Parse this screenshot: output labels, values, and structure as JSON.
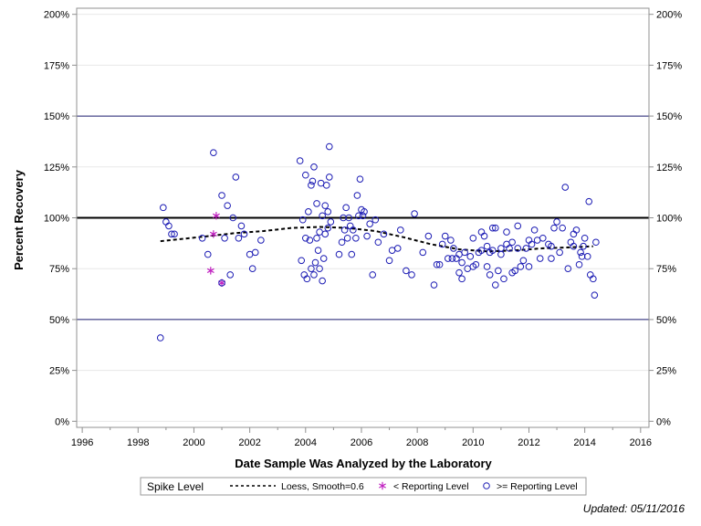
{
  "colors": {
    "frame": "#909090",
    "grid": "#e8e8e8",
    "refline": "#1a1a6e",
    "hundred": "#000000",
    "marker_ge": "#1c1cb4",
    "marker_lt": "#c020c0",
    "loess": "#000000"
  },
  "chart_data": {
    "type": "scatter",
    "title": "",
    "xlabel": "Date Sample Was Analyzed by the Laboratory",
    "ylabel": "Percent Recovery",
    "xlim": [
      1995.8,
      2016.3
    ],
    "ylim": [
      -3,
      203
    ],
    "x_ticks": [
      1996,
      1998,
      2000,
      2002,
      2004,
      2006,
      2008,
      2010,
      2012,
      2014,
      2016
    ],
    "y_ticks": [
      0,
      25,
      50,
      75,
      100,
      125,
      150,
      175,
      200
    ],
    "y_tick_labels": [
      "0%",
      "25%",
      "50%",
      "75%",
      "100%",
      "125%",
      "150%",
      "175%",
      "200%"
    ],
    "reference_lines": [
      50,
      100,
      150
    ],
    "grid": true,
    "legend": {
      "title": "Spike Level",
      "placement": "bottom",
      "entries": [
        "Loess, Smooth=0.6",
        "< Reporting Level",
        ">= Reporting Level"
      ]
    },
    "series": [
      {
        "name": "Loess, Smooth=0.6",
        "style": "line",
        "points": [
          [
            1998.8,
            88.5
          ],
          [
            1999.5,
            89.5
          ],
          [
            2000.5,
            91
          ],
          [
            2001.5,
            92.5
          ],
          [
            2002.5,
            93.5
          ],
          [
            2003.5,
            95
          ],
          [
            2004.5,
            95.5
          ],
          [
            2005.5,
            95
          ],
          [
            2006.5,
            93.5
          ],
          [
            2007.5,
            90.5
          ],
          [
            2008.5,
            87
          ],
          [
            2009.5,
            84.5
          ],
          [
            2010.5,
            83.5
          ],
          [
            2011.5,
            84
          ],
          [
            2012.5,
            85
          ],
          [
            2013.5,
            85.5
          ],
          [
            2014.3,
            86
          ]
        ]
      },
      {
        "name": "< Reporting Level",
        "style": "asterisk",
        "points": [
          [
            2000.6,
            74
          ],
          [
            2000.7,
            92
          ],
          [
            2000.8,
            101
          ],
          [
            2001.0,
            68
          ]
        ]
      },
      {
        "name": ">= Reporting Level",
        "style": "circle",
        "points": [
          [
            1998.8,
            41
          ],
          [
            1998.9,
            105
          ],
          [
            1999.0,
            98
          ],
          [
            1999.1,
            96
          ],
          [
            1999.2,
            92
          ],
          [
            1999.3,
            92
          ],
          [
            2000.3,
            90
          ],
          [
            2000.5,
            82
          ],
          [
            2000.7,
            132
          ],
          [
            2001.0,
            111
          ],
          [
            2001.0,
            68
          ],
          [
            2001.1,
            90
          ],
          [
            2001.2,
            106
          ],
          [
            2001.3,
            72
          ],
          [
            2001.4,
            100
          ],
          [
            2001.5,
            120
          ],
          [
            2001.6,
            90
          ],
          [
            2001.7,
            96
          ],
          [
            2001.8,
            92
          ],
          [
            2002.0,
            82
          ],
          [
            2002.1,
            75
          ],
          [
            2002.2,
            83
          ],
          [
            2002.4,
            89
          ],
          [
            2003.8,
            128
          ],
          [
            2003.85,
            79
          ],
          [
            2003.9,
            99
          ],
          [
            2003.95,
            72
          ],
          [
            2004.0,
            121
          ],
          [
            2004.0,
            90
          ],
          [
            2004.05,
            70
          ],
          [
            2004.1,
            103
          ],
          [
            2004.15,
            89
          ],
          [
            2004.2,
            116
          ],
          [
            2004.2,
            75
          ],
          [
            2004.25,
            118
          ],
          [
            2004.3,
            125
          ],
          [
            2004.3,
            72
          ],
          [
            2004.35,
            78
          ],
          [
            2004.4,
            107
          ],
          [
            2004.4,
            90
          ],
          [
            2004.45,
            84
          ],
          [
            2004.5,
            75
          ],
          [
            2004.5,
            93
          ],
          [
            2004.55,
            117
          ],
          [
            2004.6,
            101
          ],
          [
            2004.6,
            69
          ],
          [
            2004.65,
            80
          ],
          [
            2004.7,
            106
          ],
          [
            2004.7,
            92
          ],
          [
            2004.75,
            116
          ],
          [
            2004.8,
            103
          ],
          [
            2004.8,
            95
          ],
          [
            2004.85,
            120
          ],
          [
            2004.85,
            135
          ],
          [
            2004.9,
            98
          ],
          [
            2005.2,
            82
          ],
          [
            2005.3,
            88
          ],
          [
            2005.35,
            100
          ],
          [
            2005.4,
            94
          ],
          [
            2005.45,
            105
          ],
          [
            2005.5,
            90
          ],
          [
            2005.55,
            100
          ],
          [
            2005.6,
            96
          ],
          [
            2005.65,
            82
          ],
          [
            2005.7,
            94
          ],
          [
            2005.8,
            90
          ],
          [
            2005.85,
            111
          ],
          [
            2005.9,
            101
          ],
          [
            2005.95,
            119
          ],
          [
            2006.0,
            104
          ],
          [
            2006.05,
            101
          ],
          [
            2006.1,
            103
          ],
          [
            2006.2,
            91
          ],
          [
            2006.3,
            97
          ],
          [
            2006.4,
            72
          ],
          [
            2006.5,
            99
          ],
          [
            2006.6,
            88
          ],
          [
            2006.8,
            92
          ],
          [
            2007.0,
            79
          ],
          [
            2007.1,
            84
          ],
          [
            2007.3,
            85
          ],
          [
            2007.4,
            94
          ],
          [
            2007.6,
            74
          ],
          [
            2007.8,
            72
          ],
          [
            2007.9,
            102
          ],
          [
            2008.2,
            83
          ],
          [
            2008.4,
            91
          ],
          [
            2008.6,
            67
          ],
          [
            2008.7,
            77
          ],
          [
            2008.8,
            77
          ],
          [
            2008.9,
            87
          ],
          [
            2009.0,
            91
          ],
          [
            2009.1,
            80
          ],
          [
            2009.2,
            89
          ],
          [
            2009.25,
            80
          ],
          [
            2009.3,
            85
          ],
          [
            2009.4,
            80
          ],
          [
            2009.5,
            82
          ],
          [
            2009.5,
            73
          ],
          [
            2009.6,
            70
          ],
          [
            2009.6,
            78
          ],
          [
            2009.7,
            83
          ],
          [
            2009.8,
            75
          ],
          [
            2009.9,
            81
          ],
          [
            2010.0,
            76
          ],
          [
            2010.0,
            90
          ],
          [
            2010.1,
            77
          ],
          [
            2010.2,
            83
          ],
          [
            2010.3,
            93
          ],
          [
            2010.3,
            84
          ],
          [
            2010.4,
            91
          ],
          [
            2010.5,
            76
          ],
          [
            2010.5,
            86
          ],
          [
            2010.6,
            83
          ],
          [
            2010.6,
            72
          ],
          [
            2010.7,
            95
          ],
          [
            2010.7,
            84
          ],
          [
            2010.8,
            67
          ],
          [
            2010.8,
            95
          ],
          [
            2010.9,
            74
          ],
          [
            2011.0,
            82
          ],
          [
            2011.0,
            85
          ],
          [
            2011.1,
            70
          ],
          [
            2011.2,
            87
          ],
          [
            2011.2,
            93
          ],
          [
            2011.3,
            85
          ],
          [
            2011.4,
            73
          ],
          [
            2011.4,
            88
          ],
          [
            2011.5,
            74
          ],
          [
            2011.6,
            85
          ],
          [
            2011.6,
            96
          ],
          [
            2011.7,
            76
          ],
          [
            2011.8,
            79
          ],
          [
            2011.9,
            85
          ],
          [
            2012.0,
            76
          ],
          [
            2012.0,
            89
          ],
          [
            2012.1,
            87
          ],
          [
            2012.2,
            94
          ],
          [
            2012.3,
            89
          ],
          [
            2012.4,
            80
          ],
          [
            2012.5,
            90
          ],
          [
            2012.7,
            87
          ],
          [
            2012.8,
            80
          ],
          [
            2012.8,
            86
          ],
          [
            2012.9,
            95
          ],
          [
            2013.0,
            98
          ],
          [
            2013.1,
            83
          ],
          [
            2013.2,
            95
          ],
          [
            2013.3,
            115
          ],
          [
            2013.4,
            75
          ],
          [
            2013.5,
            88
          ],
          [
            2013.6,
            92
          ],
          [
            2013.6,
            86
          ],
          [
            2013.7,
            94
          ],
          [
            2013.8,
            77
          ],
          [
            2013.85,
            83
          ],
          [
            2013.9,
            81
          ],
          [
            2013.95,
            86
          ],
          [
            2014.0,
            90
          ],
          [
            2014.1,
            81
          ],
          [
            2014.15,
            108
          ],
          [
            2014.2,
            72
          ],
          [
            2014.3,
            70
          ],
          [
            2014.35,
            62
          ],
          [
            2014.4,
            88
          ]
        ]
      }
    ]
  },
  "footer": {
    "updated": "Updated: 05/11/2016"
  }
}
